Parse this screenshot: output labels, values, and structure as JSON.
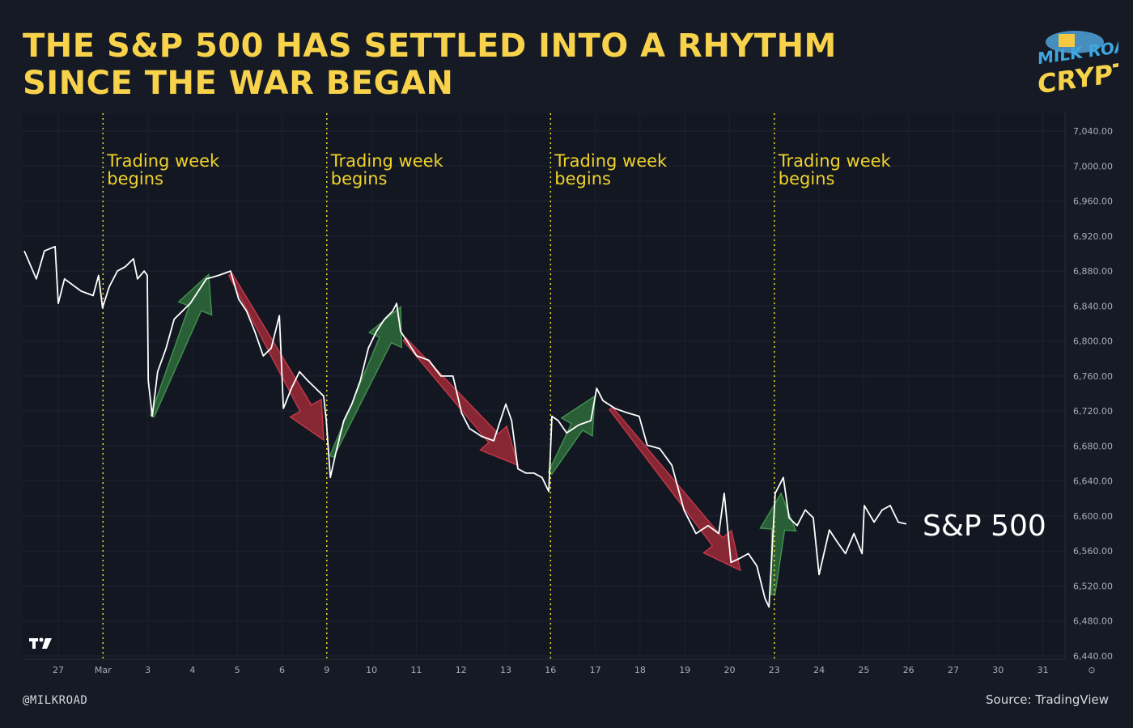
{
  "header": {
    "title": "THE S&P 500 HAS SETTLED INTO A RHYTHM SINCE THE WAR BEGAN"
  },
  "logo": {
    "text": "MILK ROAD CRYPTO"
  },
  "footer": {
    "handle": "@MILKROAD",
    "source": "Source: TradingView"
  },
  "colors": {
    "background": "#151a24",
    "title": "#f7d24a",
    "line": "#ffffff",
    "up_arrow": "#2f6b3a",
    "down_arrow": "#9b2a36",
    "marker": "#f0e020"
  },
  "chart_data": {
    "type": "line",
    "title": "",
    "xlabel": "",
    "ylabel": "",
    "ylim": [
      6440,
      7040
    ],
    "grid": true,
    "y_ticks": [
      "7,040.00",
      "7,000.00",
      "6,960.00",
      "6,920.00",
      "6,880.00",
      "6,840.00",
      "6,800.00",
      "6,760.00",
      "6,720.00",
      "6,680.00",
      "6,640.00",
      "6,600.00",
      "6,560.00",
      "6,520.00",
      "6,480.00",
      "6,440.00"
    ],
    "x_ticks": [
      {
        "label": "27",
        "session": 0
      },
      {
        "label": "Mar",
        "session": 1
      },
      {
        "label": "3",
        "session": 2
      },
      {
        "label": "4",
        "session": 3
      },
      {
        "label": "5",
        "session": 4
      },
      {
        "label": "6",
        "session": 5
      },
      {
        "label": "9",
        "session": 6
      },
      {
        "label": "10",
        "session": 7
      },
      {
        "label": "11",
        "session": 8
      },
      {
        "label": "12",
        "session": 9
      },
      {
        "label": "13",
        "session": 10
      },
      {
        "label": "16",
        "session": 11
      },
      {
        "label": "17",
        "session": 12
      },
      {
        "label": "18",
        "session": 13
      },
      {
        "label": "19",
        "session": 14
      },
      {
        "label": "20",
        "session": 15
      },
      {
        "label": "23",
        "session": 16
      },
      {
        "label": "24",
        "session": 17
      },
      {
        "label": "25",
        "session": 18
      },
      {
        "label": "26",
        "session": 19
      },
      {
        "label": "27",
        "session": 20
      },
      {
        "label": "30",
        "session": 21
      },
      {
        "label": "31",
        "session": 22
      }
    ],
    "series": [
      {
        "name": "S&P 500",
        "points": [
          [
            -0.76,
            6903
          ],
          [
            -0.49,
            6871
          ],
          [
            -0.31,
            6903
          ],
          [
            -0.07,
            6908
          ],
          [
            0,
            6843
          ],
          [
            0.14,
            6871
          ],
          [
            0.51,
            6857
          ],
          [
            0.78,
            6852
          ],
          [
            0.9,
            6875
          ],
          [
            0.99,
            6838
          ],
          [
            1.14,
            6862
          ],
          [
            1.32,
            6880
          ],
          [
            1.5,
            6885
          ],
          [
            1.68,
            6894
          ],
          [
            1.77,
            6871
          ],
          [
            1.92,
            6880
          ],
          [
            1.99,
            6875
          ],
          [
            2.01,
            6755
          ],
          [
            2.1,
            6714
          ],
          [
            2.22,
            6765
          ],
          [
            2.41,
            6792
          ],
          [
            2.59,
            6825
          ],
          [
            2.77,
            6834
          ],
          [
            2.95,
            6843
          ],
          [
            3.13,
            6857
          ],
          [
            3.31,
            6871
          ],
          [
            3.58,
            6875
          ],
          [
            3.85,
            6880
          ],
          [
            4.03,
            6848
          ],
          [
            4.21,
            6834
          ],
          [
            4.39,
            6811
          ],
          [
            4.58,
            6783
          ],
          [
            4.76,
            6792
          ],
          [
            4.94,
            6829
          ],
          [
            5.03,
            6723
          ],
          [
            5.21,
            6746
          ],
          [
            5.39,
            6765
          ],
          [
            5.57,
            6755
          ],
          [
            5.75,
            6746
          ],
          [
            5.93,
            6737
          ],
          [
            5.99,
            6709
          ],
          [
            6.08,
            6644
          ],
          [
            6.2,
            6672
          ],
          [
            6.38,
            6709
          ],
          [
            6.56,
            6728
          ],
          [
            6.75,
            6755
          ],
          [
            6.93,
            6792
          ],
          [
            7.11,
            6811
          ],
          [
            7.29,
            6825
          ],
          [
            7.47,
            6834
          ],
          [
            7.56,
            6843
          ],
          [
            7.65,
            6811
          ],
          [
            7.83,
            6797
          ],
          [
            8.01,
            6783
          ],
          [
            8.28,
            6778
          ],
          [
            8.55,
            6760
          ],
          [
            8.82,
            6760
          ],
          [
            9.01,
            6718
          ],
          [
            9.19,
            6700
          ],
          [
            9.46,
            6691
          ],
          [
            9.73,
            6686
          ],
          [
            10.0,
            6728
          ],
          [
            10.13,
            6709
          ],
          [
            10.27,
            6654
          ],
          [
            10.45,
            6649
          ],
          [
            10.63,
            6649
          ],
          [
            10.81,
            6644
          ],
          [
            10.96,
            6628
          ],
          [
            11.03,
            6714
          ],
          [
            11.17,
            6709
          ],
          [
            11.36,
            6695
          ],
          [
            11.63,
            6704
          ],
          [
            11.9,
            6709
          ],
          [
            12.03,
            6746
          ],
          [
            12.17,
            6732
          ],
          [
            12.44,
            6723
          ],
          [
            12.71,
            6718
          ],
          [
            12.98,
            6714
          ],
          [
            13.16,
            6681
          ],
          [
            13.44,
            6677
          ],
          [
            13.71,
            6658
          ],
          [
            13.98,
            6607
          ],
          [
            14.25,
            6580
          ],
          [
            14.52,
            6589
          ],
          [
            14.76,
            6580
          ],
          [
            14.88,
            6626
          ],
          [
            15.03,
            6547
          ],
          [
            15.24,
            6552
          ],
          [
            15.42,
            6557
          ],
          [
            15.61,
            6543
          ],
          [
            15.79,
            6506
          ],
          [
            15.88,
            6496
          ],
          [
            16.02,
            6626
          ],
          [
            16.2,
            6644
          ],
          [
            16.33,
            6598
          ],
          [
            16.51,
            6589
          ],
          [
            16.69,
            6607
          ],
          [
            16.87,
            6598
          ],
          [
            17.0,
            6533
          ],
          [
            17.23,
            6584
          ],
          [
            17.41,
            6570
          ],
          [
            17.59,
            6557
          ],
          [
            17.78,
            6580
          ],
          [
            17.96,
            6557
          ],
          [
            18.01,
            6612
          ],
          [
            18.23,
            6593
          ],
          [
            18.41,
            6607
          ],
          [
            18.59,
            6612
          ],
          [
            18.77,
            6593
          ],
          [
            18.95,
            6591
          ]
        ]
      }
    ],
    "series_label": "S&P 500",
    "annotations": {
      "week_markers": [
        {
          "session": 1,
          "label_line1": "Trading week",
          "label_line2": "begins"
        },
        {
          "session": 6,
          "label_line1": "Trading week",
          "label_line2": "begins"
        },
        {
          "session": 11,
          "label_line1": "Trading week",
          "label_line2": "begins"
        },
        {
          "session": 16,
          "label_line1": "Trading week",
          "label_line2": "begins"
        }
      ],
      "arrows": [
        {
          "direction": "up",
          "from": [
            2.1,
            6714
          ],
          "to": [
            3.36,
            6876
          ]
        },
        {
          "direction": "down",
          "from": [
            3.85,
            6876
          ],
          "to": [
            5.93,
            6687
          ]
        },
        {
          "direction": "up",
          "from": [
            6.11,
            6668
          ],
          "to": [
            7.65,
            6839
          ]
        },
        {
          "direction": "down",
          "from": [
            7.74,
            6802
          ],
          "to": [
            10.27,
            6658
          ]
        },
        {
          "direction": "up",
          "from": [
            10.99,
            6649
          ],
          "to": [
            11.99,
            6737
          ]
        },
        {
          "direction": "down",
          "from": [
            12.35,
            6723
          ],
          "to": [
            15.24,
            6538
          ]
        },
        {
          "direction": "up",
          "from": [
            15.97,
            6510
          ],
          "to": [
            16.15,
            6626
          ]
        }
      ]
    }
  }
}
